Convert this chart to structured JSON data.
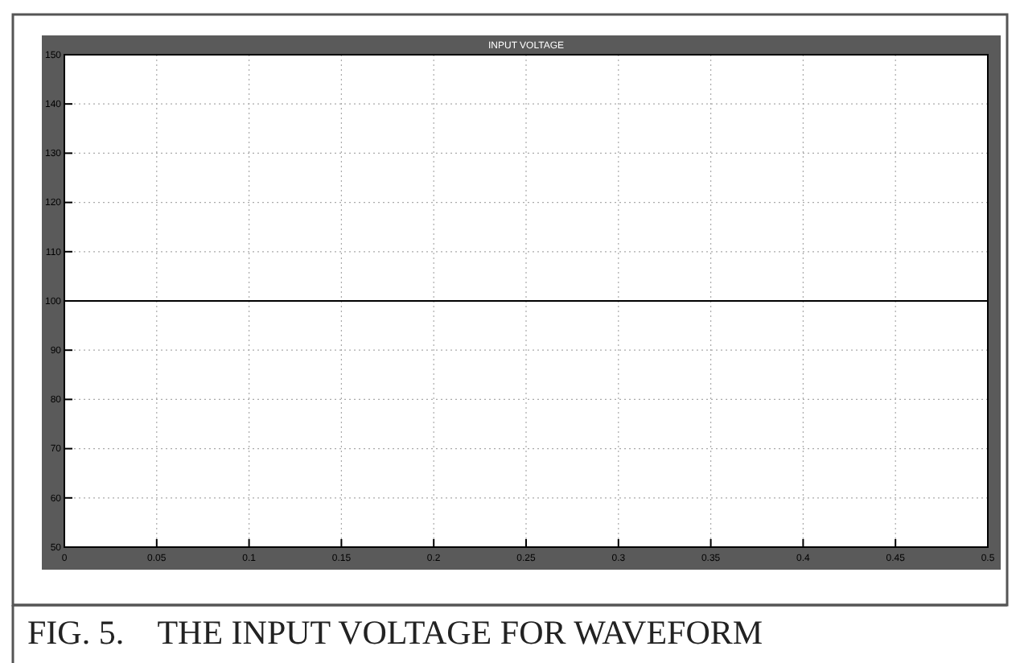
{
  "chart_data": {
    "type": "line",
    "title": "INPUT VOLTAGE",
    "x": [
      0,
      0.5
    ],
    "series": [
      {
        "color": "#000000",
        "values": [
          100,
          100
        ]
      }
    ],
    "xlim": [
      0,
      0.5
    ],
    "ylim": [
      50,
      150
    ],
    "xticks": [
      0,
      0.05,
      0.1,
      0.15,
      0.2,
      0.25,
      0.3,
      0.35,
      0.4,
      0.45,
      0.5
    ],
    "yticks": [
      50,
      60,
      70,
      80,
      90,
      100,
      110,
      120,
      130,
      140,
      150
    ],
    "grid": true,
    "marker": "none",
    "line_style": "solid",
    "annotations": [
      "FIG. 5.    THE INPUT VOLTAGE FOR WAVEFORM"
    ]
  }
}
